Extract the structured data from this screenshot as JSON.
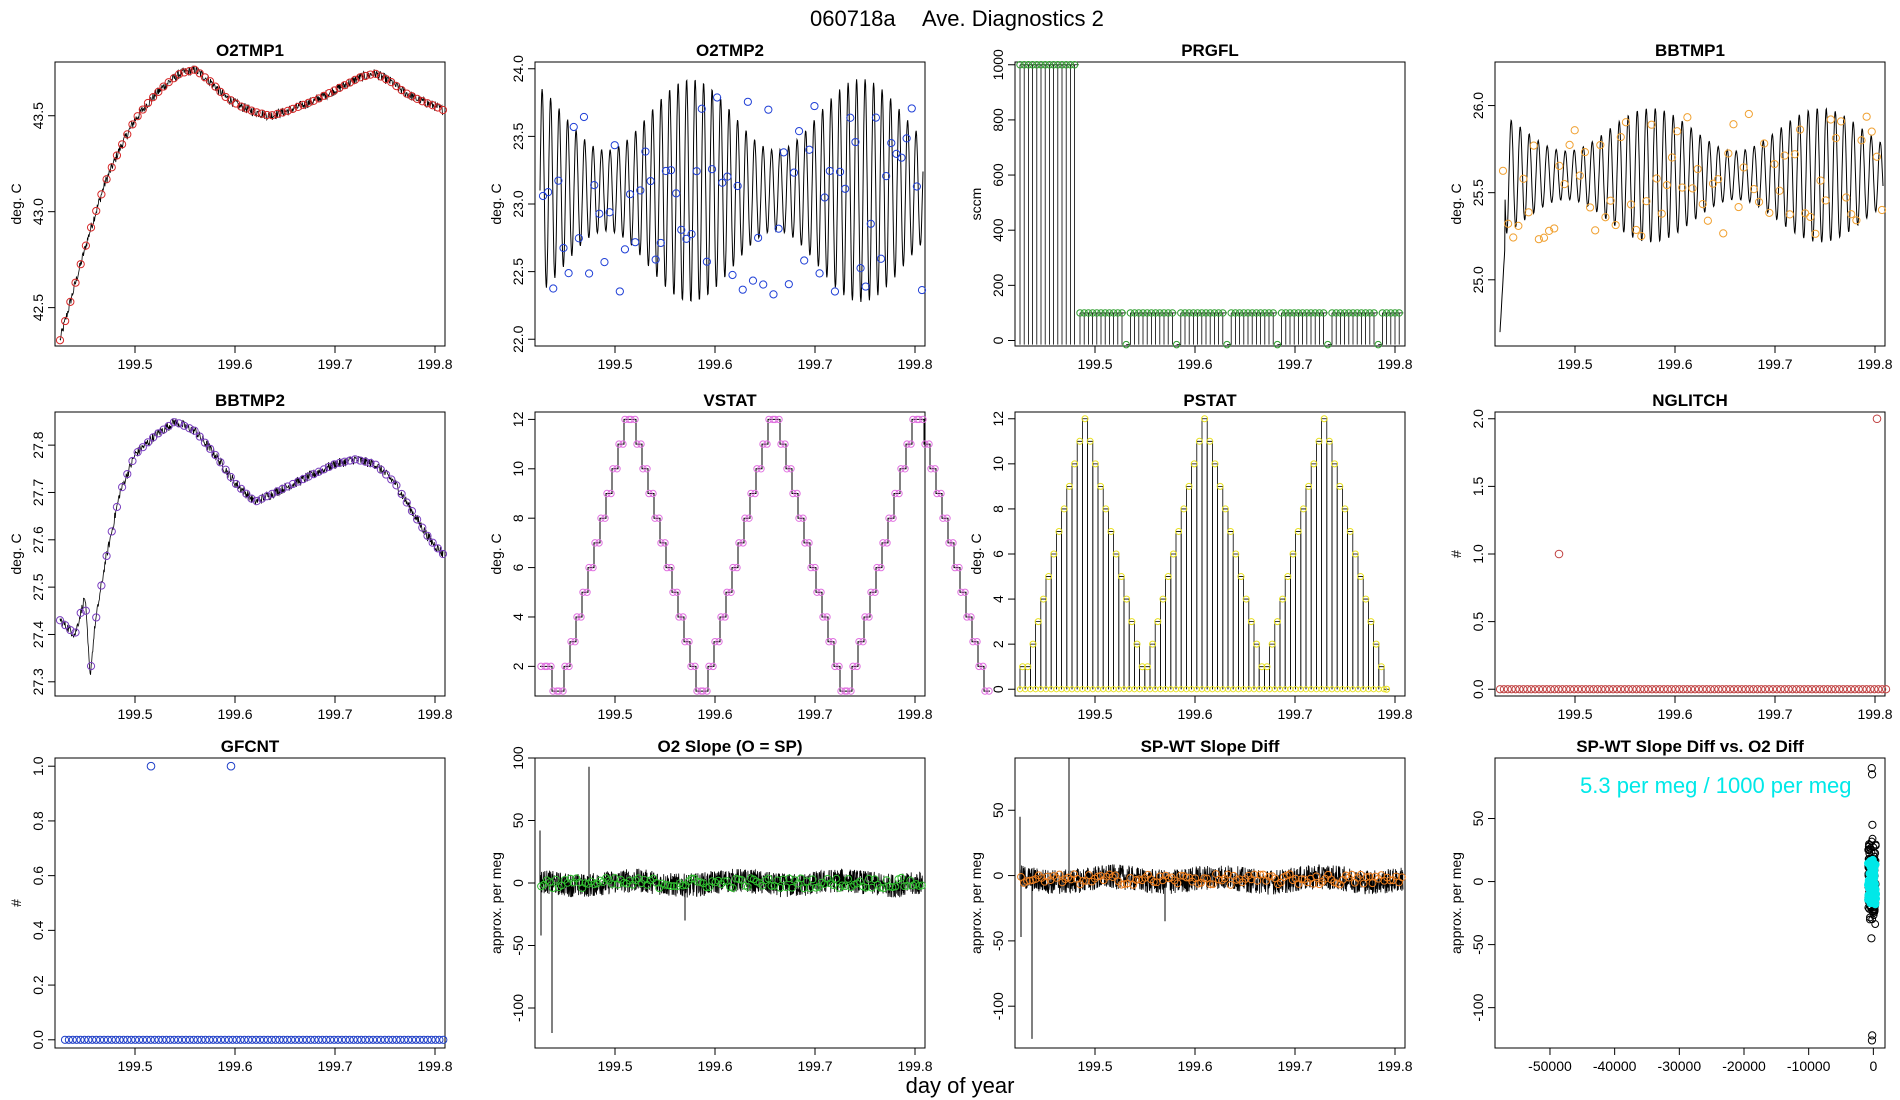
{
  "figure": {
    "title_id": "060718a",
    "title_text": "Ave. Diagnostics 2",
    "xlabel": "day of year"
  },
  "chart_data": [
    {
      "id": "o2tmp1",
      "title": "O2TMP1",
      "type": "line",
      "ylabel": "deg. C",
      "xlim": [
        199.42,
        199.81
      ],
      "ylim": [
        42.3,
        43.78
      ],
      "xticks": [
        199.5,
        199.6,
        199.7,
        199.8
      ],
      "xtick_labels": [
        "199.5",
        "199.6",
        "199.7",
        "199.8"
      ],
      "yticks": [
        42.5,
        43.0,
        43.5
      ],
      "ytick_labels": [
        "42.5",
        "43.0",
        "43.5"
      ],
      "marker_color": "#d62828",
      "series": {
        "name": "avg",
        "x": [
          199.425,
          199.44,
          199.455,
          199.47,
          199.485,
          199.5,
          199.515,
          199.53,
          199.545,
          199.56,
          199.575,
          199.59,
          199.605,
          199.62,
          199.635,
          199.65,
          199.665,
          199.68,
          199.695,
          199.71,
          199.725,
          199.74,
          199.755,
          199.77,
          199.785,
          199.8,
          199.808
        ],
        "values": [
          42.33,
          42.62,
          42.9,
          43.15,
          43.33,
          43.48,
          43.58,
          43.66,
          43.72,
          43.74,
          43.68,
          43.6,
          43.55,
          43.52,
          43.5,
          43.52,
          43.55,
          43.58,
          43.62,
          43.66,
          43.7,
          43.72,
          43.68,
          43.62,
          43.58,
          43.55,
          43.53
        ]
      }
    },
    {
      "id": "o2tmp2",
      "title": "O2TMP2",
      "type": "line",
      "ylabel": "deg. C",
      "xlim": [
        199.42,
        199.81
      ],
      "ylim": [
        21.95,
        24.05
      ],
      "xticks": [
        199.5,
        199.6,
        199.7,
        199.8
      ],
      "xtick_labels": [
        "199.5",
        "199.6",
        "199.7",
        "199.8"
      ],
      "yticks": [
        22.0,
        22.5,
        23.0,
        23.5,
        24.0
      ],
      "ytick_labels": [
        "22.0",
        "22.5",
        "23.0",
        "23.5",
        "24.0"
      ],
      "marker_color": "#1f3fd6",
      "series": {
        "name": "avg",
        "center": 23.1,
        "amplitude": 0.75,
        "period_days": 0.0085
      }
    },
    {
      "id": "prgfl",
      "title": "PRGFL",
      "type": "line",
      "ylabel": "sccm",
      "xlim": [
        199.42,
        199.81
      ],
      "ylim": [
        -20,
        1010
      ],
      "xticks": [
        199.5,
        199.6,
        199.7,
        199.8
      ],
      "xtick_labels": [
        "199.5",
        "199.6",
        "199.7",
        "199.8"
      ],
      "yticks": [
        0,
        200,
        400,
        600,
        800,
        1000
      ],
      "ytick_labels": [
        "0",
        "200",
        "400",
        "600",
        "800",
        "1000"
      ],
      "marker_color": "#2e9e2e",
      "series": {
        "name": "avg",
        "levels": [
          {
            "from": 199.425,
            "to": 199.485,
            "high": 1000
          },
          {
            "from": 199.485,
            "to": 199.808,
            "high": 100
          }
        ],
        "low": -15
      }
    },
    {
      "id": "bbtmp1",
      "title": "BBTMP1",
      "type": "line",
      "ylabel": "deg. C",
      "xlim": [
        199.42,
        199.81
      ],
      "ylim": [
        24.62,
        26.25
      ],
      "xticks": [
        199.5,
        199.6,
        199.7,
        199.8
      ],
      "xtick_labels": [
        "199.5",
        "199.6",
        "199.7",
        "199.8"
      ],
      "yticks": [
        25.0,
        25.5,
        26.0
      ],
      "ytick_labels": [
        "25.0",
        "25.5",
        "26.0"
      ],
      "marker_color": "#f0a030",
      "series": {
        "name": "avg",
        "center": 25.6,
        "amplitude": 0.35,
        "period_days": 0.009
      }
    },
    {
      "id": "bbtmp2",
      "title": "BBTMP2",
      "type": "line",
      "ylabel": "deg. C",
      "xlim": [
        199.42,
        199.81
      ],
      "ylim": [
        27.27,
        27.87
      ],
      "xticks": [
        199.5,
        199.6,
        199.7,
        199.8
      ],
      "xtick_labels": [
        "199.5",
        "199.6",
        "199.7",
        "199.8"
      ],
      "yticks": [
        27.3,
        27.4,
        27.5,
        27.6,
        27.7,
        27.8
      ],
      "ytick_labels": [
        "27.3",
        "27.4",
        "27.5",
        "27.6",
        "27.7",
        "27.8"
      ],
      "marker_color": "#7a3fc0",
      "series": {
        "name": "avg",
        "x": [
          199.425,
          199.44,
          199.45,
          199.455,
          199.46,
          199.47,
          199.485,
          199.5,
          199.52,
          199.54,
          199.56,
          199.58,
          199.6,
          199.62,
          199.64,
          199.66,
          199.68,
          199.7,
          199.72,
          199.74,
          199.76,
          199.78,
          199.795,
          199.808
        ],
        "values": [
          27.43,
          27.4,
          27.48,
          27.31,
          27.42,
          27.55,
          27.7,
          27.78,
          27.82,
          27.85,
          27.83,
          27.78,
          27.72,
          27.68,
          27.7,
          27.72,
          27.74,
          27.76,
          27.77,
          27.76,
          27.72,
          27.65,
          27.6,
          27.57
        ]
      }
    },
    {
      "id": "vstat",
      "title": "VSTAT",
      "type": "step",
      "ylabel": "deg. C",
      "xlim": [
        199.42,
        199.81
      ],
      "ylim": [
        0.8,
        12.3
      ],
      "xticks": [
        199.5,
        199.6,
        199.7,
        199.8
      ],
      "xtick_labels": [
        "199.5",
        "199.6",
        "199.7",
        "199.8"
      ],
      "yticks": [
        2,
        4,
        6,
        8,
        10,
        12
      ],
      "ytick_labels": [
        "2",
        "4",
        "6",
        "8",
        "10",
        "12"
      ],
      "marker_color": "#e070e0",
      "series": {
        "name": "state",
        "x0": 199.425,
        "step_days": 0.006,
        "pattern": [
          2,
          2,
          1,
          1,
          2,
          3,
          4,
          5,
          6,
          7,
          8,
          9,
          10,
          11,
          12,
          12,
          11,
          10,
          9,
          8,
          7,
          6,
          5,
          4,
          3,
          2,
          1,
          1,
          2,
          3,
          4,
          5,
          6,
          7,
          8,
          9,
          10,
          11,
          12,
          12,
          11,
          10,
          9,
          8,
          7,
          6,
          5,
          4,
          3,
          2,
          1,
          1,
          2,
          3,
          4,
          5,
          6,
          7,
          8,
          9,
          10,
          11,
          12,
          12,
          11,
          10,
          9,
          8,
          7,
          6,
          5,
          4,
          3,
          2,
          1
        ]
      }
    },
    {
      "id": "pstat",
      "title": "PSTAT",
      "type": "spikes",
      "ylabel": "deg. C",
      "xlim": [
        199.42,
        199.81
      ],
      "ylim": [
        -0.3,
        12.3
      ],
      "xticks": [
        199.5,
        199.6,
        199.7,
        199.8
      ],
      "xtick_labels": [
        "199.5",
        "199.6",
        "199.7",
        "199.8"
      ],
      "yticks": [
        0,
        2,
        4,
        6,
        8,
        10,
        12
      ],
      "ytick_labels": [
        "0",
        "2",
        "4",
        "6",
        "8",
        "10",
        "12"
      ],
      "marker_color": "#e8e020",
      "series": {
        "name": "state",
        "x0": 199.425,
        "step_days": 0.0052,
        "pattern": [
          1,
          1,
          2,
          3,
          4,
          5,
          6,
          7,
          8,
          9,
          10,
          11,
          12,
          11,
          10,
          9,
          8,
          7,
          6,
          5,
          4,
          3,
          2,
          1,
          1,
          2,
          3,
          4,
          5,
          6,
          7,
          8,
          9,
          10,
          11,
          12,
          11,
          10,
          9,
          8,
          7,
          6,
          5,
          4,
          3,
          2,
          1,
          1,
          2,
          3,
          4,
          5,
          6,
          7,
          8,
          9,
          10,
          11,
          12,
          11,
          10,
          9,
          8,
          7,
          6,
          5,
          4,
          3,
          2,
          1,
          0
        ]
      }
    },
    {
      "id": "nglitch",
      "title": "NGLITCH",
      "type": "scatter",
      "ylabel": "#",
      "xlim": [
        199.42,
        199.81
      ],
      "ylim": [
        -0.05,
        2.05
      ],
      "xticks": [
        199.5,
        199.6,
        199.7,
        199.8
      ],
      "xtick_labels": [
        "199.5",
        "199.6",
        "199.7",
        "199.8"
      ],
      "yticks": [
        0.0,
        0.5,
        1.0,
        1.5,
        2.0
      ],
      "ytick_labels": [
        "0.0",
        "0.5",
        "1.0",
        "1.5",
        "2.0"
      ],
      "marker_color": "#c04040",
      "series": {
        "name": "count",
        "x0": 199.425,
        "step_days": 0.0039,
        "n": 100,
        "baseline": 0,
        "extras": [
          {
            "x": 199.484,
            "y": 1
          },
          {
            "x": 199.802,
            "y": 2
          }
        ]
      }
    },
    {
      "id": "gfcnt",
      "title": "GFCNT",
      "type": "scatter",
      "ylabel": "#",
      "xlim": [
        199.42,
        199.81
      ],
      "ylim": [
        -0.03,
        1.03
      ],
      "xticks": [
        199.5,
        199.6,
        199.7,
        199.8
      ],
      "xtick_labels": [
        "199.5",
        "199.6",
        "199.7",
        "199.8"
      ],
      "yticks": [
        0.0,
        0.2,
        0.4,
        0.6,
        0.8,
        1.0
      ],
      "ytick_labels": [
        "0.0",
        "0.2",
        "0.4",
        "0.6",
        "0.8",
        "1.0"
      ],
      "marker_color": "#2040c8",
      "series": {
        "name": "count",
        "x0": 199.43,
        "step_days": 0.0039,
        "n": 98,
        "baseline": 0,
        "extras": [
          {
            "x": 199.516,
            "y": 1
          },
          {
            "x": 199.596,
            "y": 1
          }
        ]
      }
    },
    {
      "id": "o2slope",
      "title": "O2 Slope (O = SP)",
      "type": "noisy",
      "ylabel": "approx. per meg",
      "xlim": [
        199.42,
        199.81
      ],
      "ylim": [
        -132,
        100
      ],
      "xticks": [
        199.5,
        199.6,
        199.7,
        199.8
      ],
      "xtick_labels": [
        "199.5",
        "199.6",
        "199.7",
        "199.8"
      ],
      "yticks": [
        -100,
        -50,
        0,
        50,
        100
      ],
      "ytick_labels": [
        "-100",
        "-50",
        "0",
        "50",
        "100"
      ],
      "marker_color": "#30c030",
      "series": {
        "name": "slope",
        "center": 0,
        "noise": 6,
        "spikes": [
          {
            "x": 199.425,
            "y": 42
          },
          {
            "x": 199.426,
            "y": -42
          },
          {
            "x": 199.437,
            "y": -120
          },
          {
            "x": 199.474,
            "y": 93
          },
          {
            "x": 199.57,
            "y": -30
          }
        ]
      }
    },
    {
      "id": "spwtdiff",
      "title": "SP-WT Slope Diff",
      "type": "noisy",
      "ylabel": "approx. per meg",
      "xlim": [
        199.42,
        199.81
      ],
      "ylim": [
        -132,
        90
      ],
      "xticks": [
        199.5,
        199.6,
        199.7,
        199.8
      ],
      "xtick_labels": [
        "199.5",
        "199.6",
        "199.7",
        "199.8"
      ],
      "yticks": [
        -100,
        -50,
        0,
        50
      ],
      "ytick_labels": [
        "-100",
        "-50",
        "0",
        "50"
      ],
      "marker_color": "#f08020",
      "series": {
        "name": "diff",
        "center": -3,
        "noise": 6,
        "spikes": [
          {
            "x": 199.425,
            "y": 45
          },
          {
            "x": 199.426,
            "y": -47
          },
          {
            "x": 199.437,
            "y": -125
          },
          {
            "x": 199.474,
            "y": 90
          },
          {
            "x": 199.57,
            "y": -35
          }
        ]
      }
    },
    {
      "id": "diffvso2",
      "title": "SP-WT Slope Diff vs. O2 Diff",
      "type": "scatter",
      "ylabel": "approx. per meg",
      "xlim": [
        -58500,
        1800
      ],
      "ylim": [
        -132,
        98
      ],
      "xticks": [
        -50000,
        -40000,
        -30000,
        -20000,
        -10000,
        0
      ],
      "xtick_labels": [
        "-50000",
        "-40000",
        "-30000",
        "-20000",
        "-10000",
        "0"
      ],
      "yticks": [
        -100,
        -50,
        0,
        50
      ],
      "ytick_labels": [
        "-100",
        "-50",
        "0",
        "50"
      ],
      "marker_color": "#000000",
      "fit_color": "#00e8e8",
      "annotation": "5.3 per meg / 1000 per meg",
      "series": {
        "name": "points",
        "x_center": -200,
        "outliers": [
          {
            "x": -250,
            "y": 90
          },
          {
            "x": -200,
            "y": 85
          },
          {
            "x": -180,
            "y": -122
          },
          {
            "x": -220,
            "y": -126
          },
          {
            "x": -150,
            "y": 45
          },
          {
            "x": -300,
            "y": -45
          }
        ]
      }
    }
  ]
}
